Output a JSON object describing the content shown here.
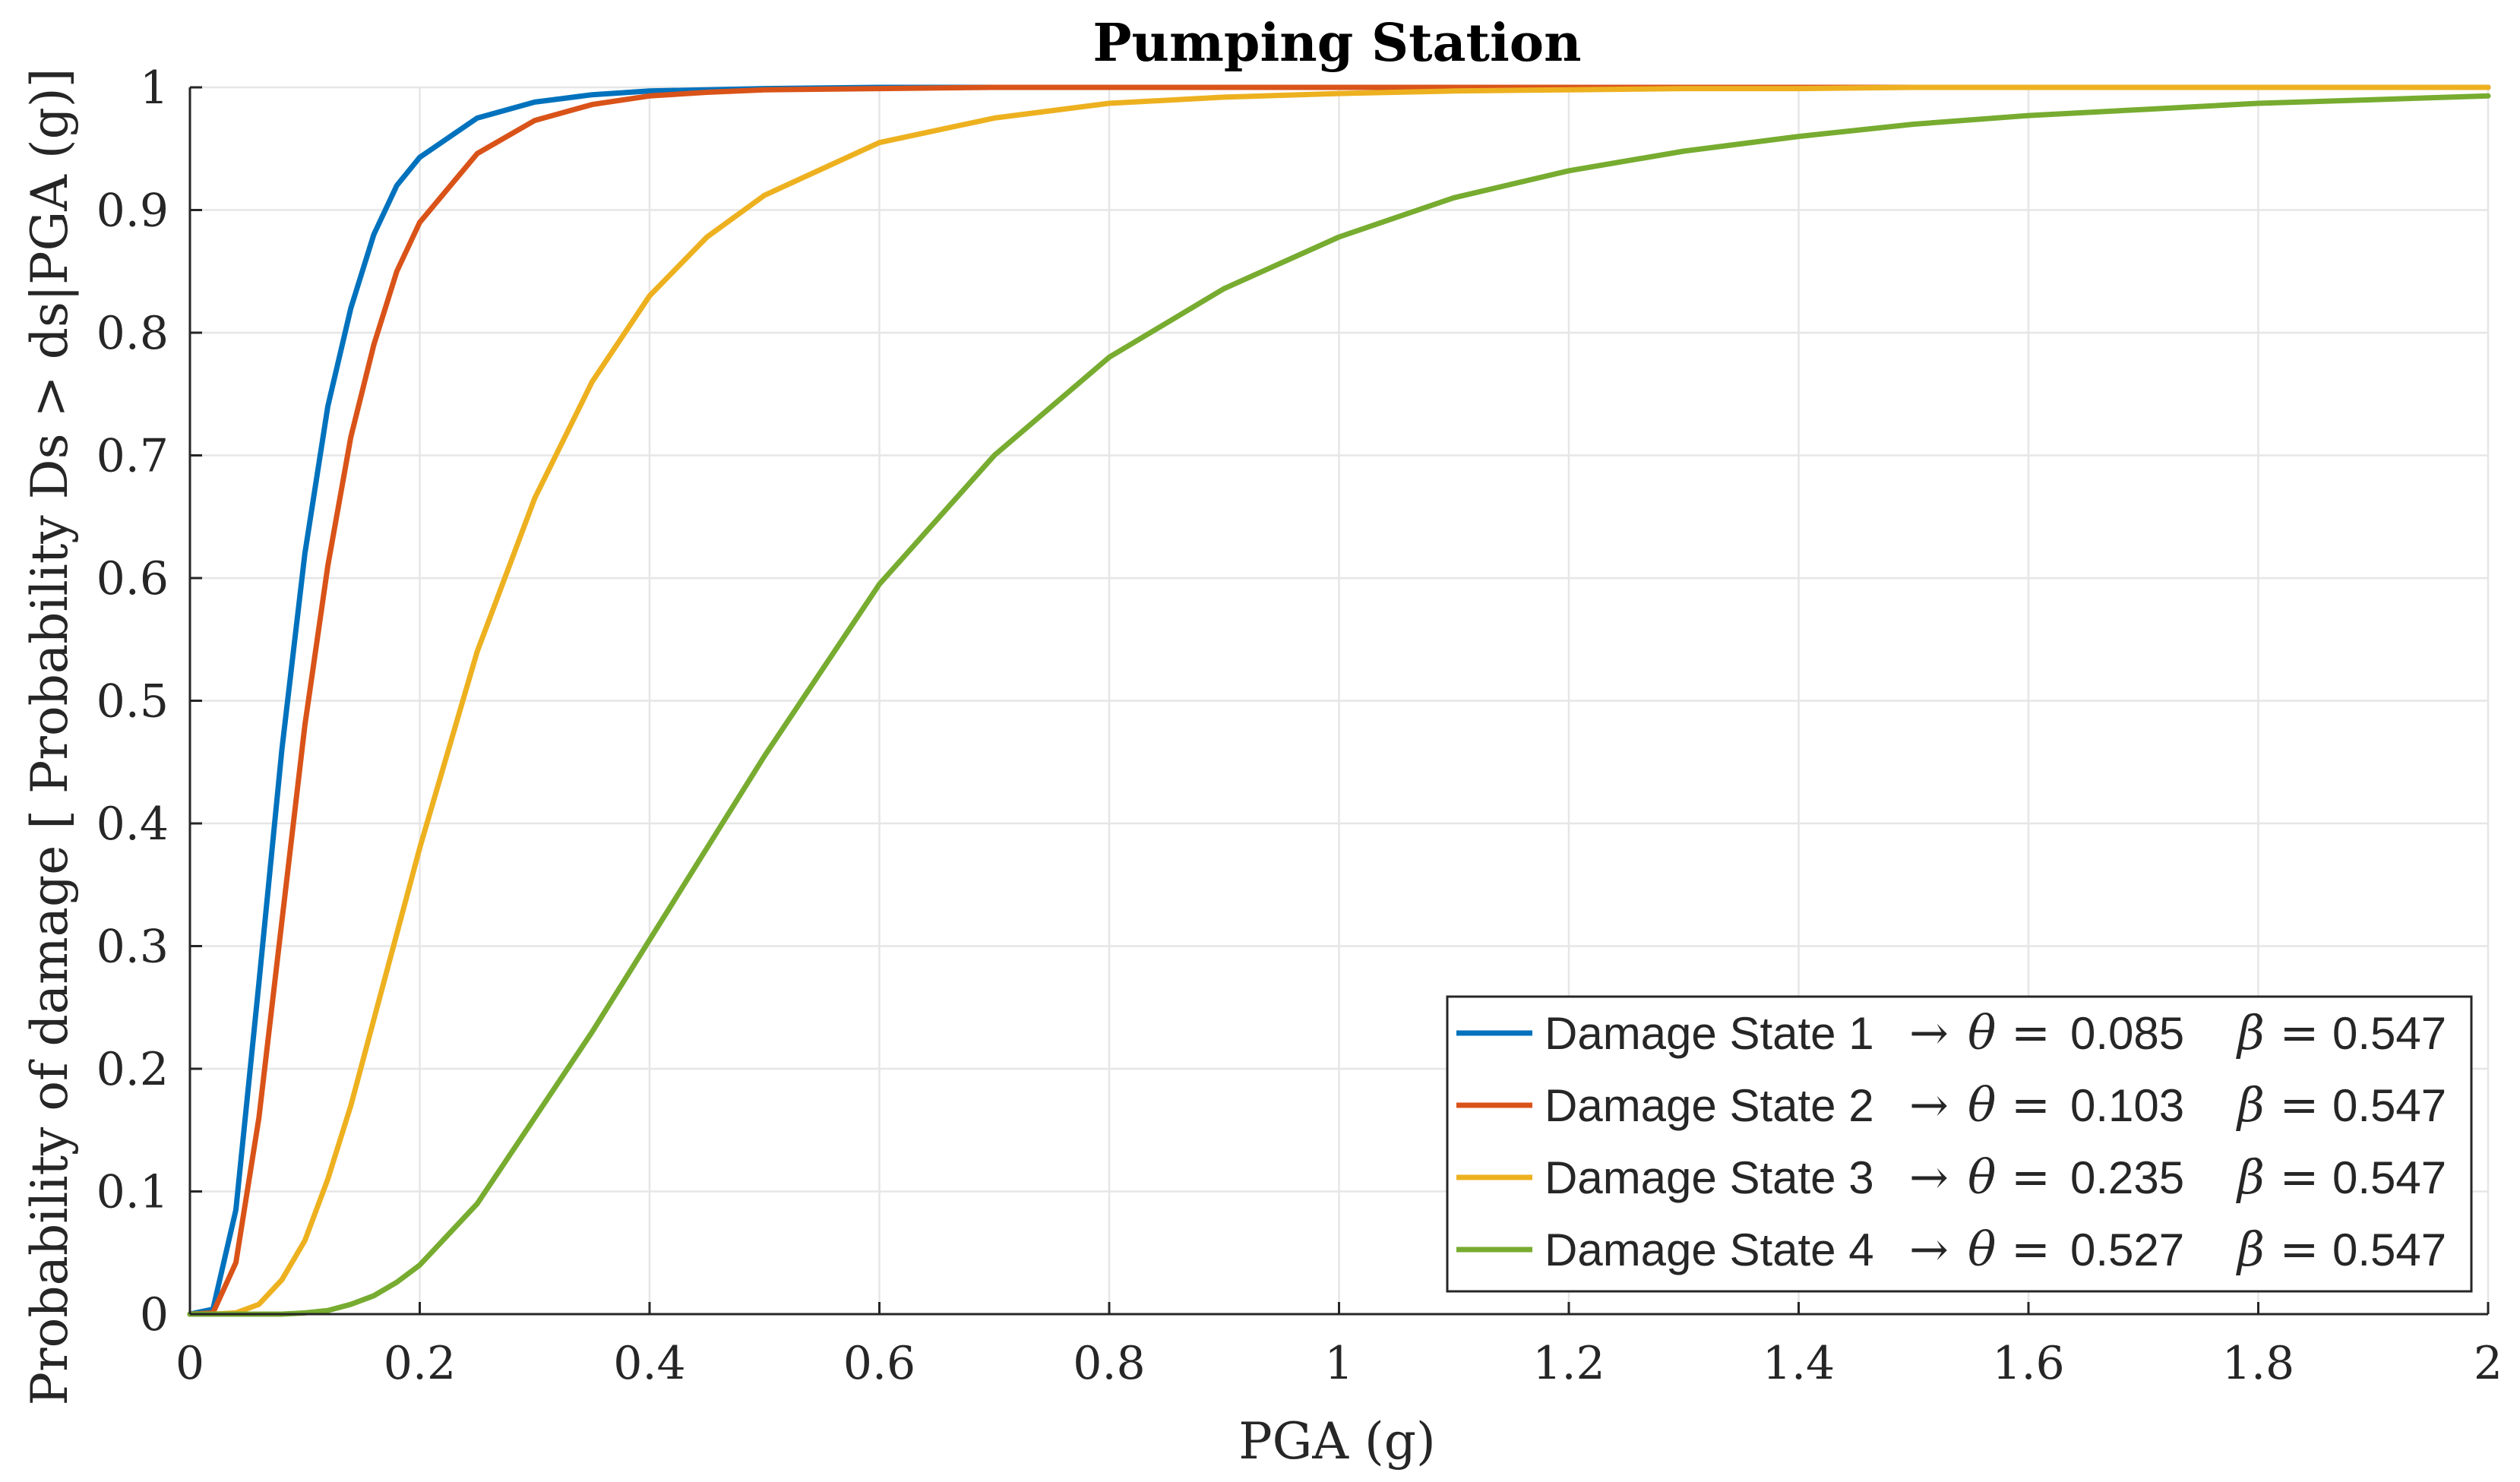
{
  "chart_data": {
    "type": "line",
    "title": "Pumping Station",
    "xlabel": "PGA (g)",
    "ylabel": "Probability of damage [ Probability Ds > ds|PGA (g)]",
    "xlim": [
      0,
      2
    ],
    "ylim": [
      0,
      1
    ],
    "grid": true,
    "legend_position": "bottom-right",
    "x_ticks": [
      "0",
      "0.2",
      "0.4",
      "0.6",
      "0.8",
      "1",
      "1.2",
      "1.4",
      "1.6",
      "1.8",
      "2"
    ],
    "y_ticks": [
      "0",
      "0.1",
      "0.2",
      "0.3",
      "0.4",
      "0.5",
      "0.6",
      "0.7",
      "0.8",
      "0.9",
      "1"
    ],
    "x": [
      0,
      0.02,
      0.04,
      0.06,
      0.08,
      0.1,
      0.12,
      0.14,
      0.16,
      0.18,
      0.2,
      0.25,
      0.3,
      0.35,
      0.4,
      0.45,
      0.5,
      0.6,
      0.7,
      0.8,
      0.9,
      1.0,
      1.1,
      1.2,
      1.3,
      1.4,
      1.5,
      1.6,
      1.7,
      1.8,
      1.9,
      2.0
    ],
    "series": [
      {
        "name": "Damage State 1",
        "legend_label": "Damage State 1",
        "theta": "0.085",
        "beta": "0.547",
        "color": "#0072BD",
        "values": [
          0,
          0.004,
          0.085,
          0.27,
          0.46,
          0.62,
          0.74,
          0.82,
          0.88,
          0.92,
          0.943,
          0.975,
          0.988,
          0.994,
          0.997,
          0.998,
          0.999,
          1.0,
          1.0,
          1.0,
          1.0,
          1.0,
          1.0,
          1.0,
          1.0,
          1.0,
          1.0,
          1.0,
          1.0,
          1.0,
          1.0,
          1.0
        ]
      },
      {
        "name": "Damage State 2",
        "legend_label": "Damage State 2",
        "theta": "0.103",
        "beta": "0.547",
        "color": "#D95319",
        "values": [
          0,
          0.001,
          0.042,
          0.16,
          0.32,
          0.48,
          0.61,
          0.715,
          0.79,
          0.85,
          0.89,
          0.946,
          0.973,
          0.986,
          0.993,
          0.996,
          0.998,
          0.999,
          1.0,
          1.0,
          1.0,
          1.0,
          1.0,
          1.0,
          1.0,
          1.0,
          1.0,
          1.0,
          1.0,
          1.0,
          1.0,
          1.0
        ]
      },
      {
        "name": "Damage State 3",
        "legend_label": "Damage State 3",
        "theta": "0.235",
        "beta": "0.547",
        "color": "#EDB120",
        "values": [
          0,
          0.0,
          0.001,
          0.008,
          0.028,
          0.06,
          0.11,
          0.17,
          0.24,
          0.31,
          0.38,
          0.54,
          0.665,
          0.76,
          0.83,
          0.878,
          0.912,
          0.955,
          0.975,
          0.987,
          0.992,
          0.995,
          0.997,
          0.998,
          0.999,
          0.999,
          1.0,
          1.0,
          1.0,
          1.0,
          1.0,
          1.0
        ]
      },
      {
        "name": "Damage State 4",
        "legend_label": "Damage State 4",
        "theta": "0.527",
        "beta": "0.547",
        "color": "#77AC30",
        "values": [
          0,
          0.0,
          0.0,
          0.0,
          0.0,
          0.001,
          0.003,
          0.008,
          0.015,
          0.026,
          0.04,
          0.09,
          0.16,
          0.23,
          0.305,
          0.38,
          0.455,
          0.595,
          0.7,
          0.78,
          0.836,
          0.878,
          0.91,
          0.932,
          0.948,
          0.96,
          0.97,
          0.977,
          0.982,
          0.987,
          0.99,
          0.993
        ]
      }
    ]
  }
}
